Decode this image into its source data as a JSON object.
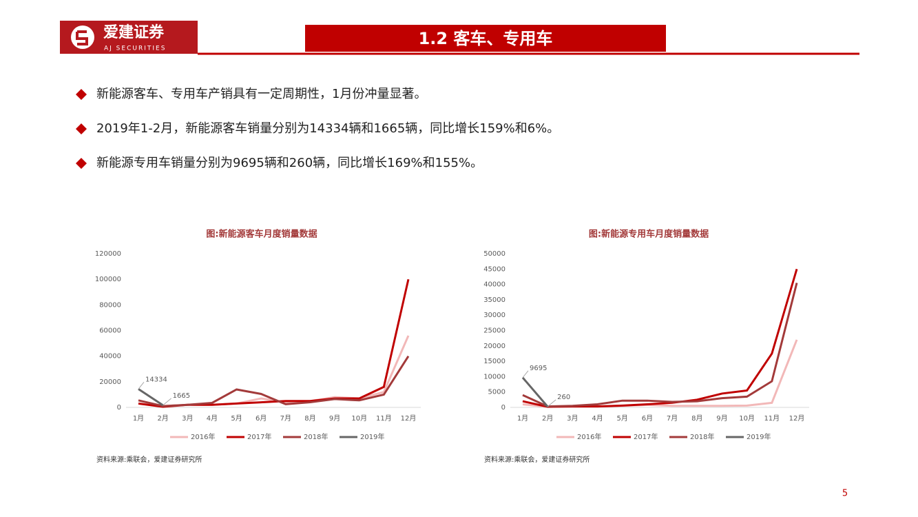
{
  "header": {
    "logo_cn": "爱建证券",
    "logo_en": "AJ SECURITIES",
    "title": "1.2 客车、专用车"
  },
  "bullets": [
    "新能源客车、专用车产销具有一定周期性，1月份冲量显著。",
    "2019年1-2月，新能源客车销量分别为14334辆和1665辆，同比增长159%和6%。",
    "新能源专用车销量分别为9695辆和260辆，同比增长169%和155%。"
  ],
  "chart_data": [
    {
      "type": "line",
      "title": "图:新能源客车月度销量数据",
      "categories": [
        "1月",
        "2月",
        "3月",
        "4月",
        "5月",
        "6月",
        "7月",
        "8月",
        "9月",
        "10月",
        "11月",
        "12月"
      ],
      "series": [
        {
          "name": "2016年",
          "color": "#f2b8b8",
          "values": [
            3000,
            1000,
            2000,
            2000,
            3000,
            7000,
            4000,
            5000,
            8000,
            7000,
            12000,
            56000
          ]
        },
        {
          "name": "2017年",
          "color": "#c00000",
          "values": [
            3000,
            500,
            2000,
            2000,
            3000,
            4000,
            5000,
            5000,
            7000,
            7000,
            16000,
            100000
          ]
        },
        {
          "name": "2018年",
          "color": "#a33a3a",
          "values": [
            5500,
            1000,
            2000,
            3500,
            14000,
            10500,
            2500,
            4000,
            6500,
            5500,
            10000,
            40000
          ]
        },
        {
          "name": "2019年",
          "color": "#666666",
          "data_labels": true,
          "values": [
            14334,
            1665,
            null,
            null,
            null,
            null,
            null,
            null,
            null,
            null,
            null,
            null
          ]
        }
      ],
      "ylim": [
        0,
        120000
      ],
      "yticks": [
        0,
        20000,
        40000,
        60000,
        80000,
        100000,
        120000
      ],
      "legend": "bottom"
    },
    {
      "type": "line",
      "title": "图:新能源专用车月度销量数据",
      "categories": [
        "1月",
        "2月",
        "3月",
        "4月",
        "5月",
        "6月",
        "7月",
        "8月",
        "9月",
        "10月",
        "11月",
        "12月"
      ],
      "series": [
        {
          "name": "2016年",
          "color": "#f2b8b8",
          "values": [
            1000,
            200,
            300,
            300,
            500,
            800,
            500,
            500,
            500,
            600,
            1500,
            22000
          ]
        },
        {
          "name": "2017年",
          "color": "#c00000",
          "values": [
            2000,
            200,
            300,
            300,
            600,
            1000,
            1500,
            2500,
            4500,
            5500,
            17500,
            45000
          ]
        },
        {
          "name": "2018年",
          "color": "#a33a3a",
          "values": [
            4000,
            300,
            500,
            1000,
            2200,
            2200,
            1800,
            2000,
            3000,
            3500,
            8500,
            40500
          ]
        },
        {
          "name": "2019年",
          "color": "#666666",
          "data_labels": true,
          "values": [
            9695,
            260,
            null,
            null,
            null,
            null,
            null,
            null,
            null,
            null,
            null,
            null
          ]
        }
      ],
      "ylim": [
        0,
        50000
      ],
      "yticks": [
        0,
        5000,
        10000,
        15000,
        20000,
        25000,
        30000,
        35000,
        40000,
        45000,
        50000
      ],
      "legend": "bottom"
    }
  ],
  "sources": [
    "资料来源:乘联会，爱建证券研究所",
    "资料来源:乘联会，爱建证券研究所"
  ],
  "page_number": "5"
}
